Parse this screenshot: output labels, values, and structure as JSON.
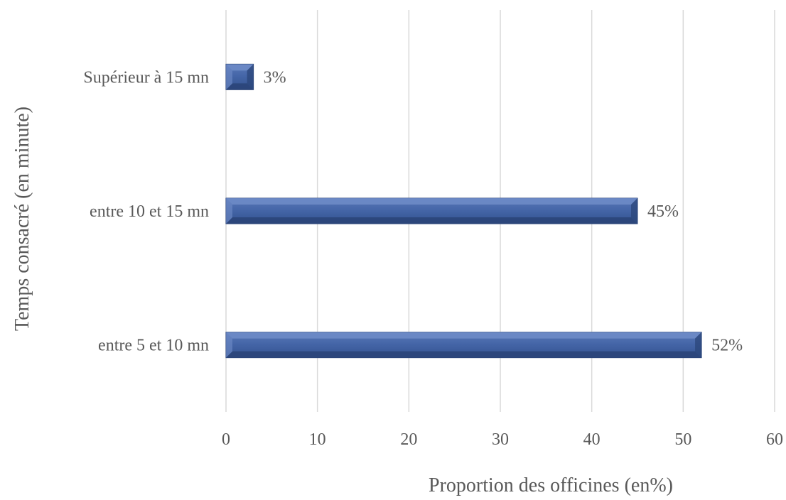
{
  "chart_data": {
    "type": "bar",
    "orientation": "horizontal",
    "title": "",
    "xlabel": "Proportion des officines (en%)",
    "ylabel": "Temps consacré (en minute)",
    "xlim": [
      0,
      60
    ],
    "xticks": [
      0,
      10,
      20,
      30,
      40,
      50,
      60
    ],
    "grid": true,
    "legend": "none",
    "categories": [
      "Supérieur à 15 mn",
      "entre 10 et 15 mn",
      "entre 5 et 10 mn"
    ],
    "values": [
      3,
      45,
      52
    ],
    "data_labels": [
      "3%",
      "45%",
      "52%"
    ],
    "bar_color": "#3E5E9E",
    "bar_highlight_color": "#6F8CC8",
    "bar_shadow_color": "#2B4579",
    "grid_color": "#D9D9D9",
    "text_color": "#595959"
  }
}
